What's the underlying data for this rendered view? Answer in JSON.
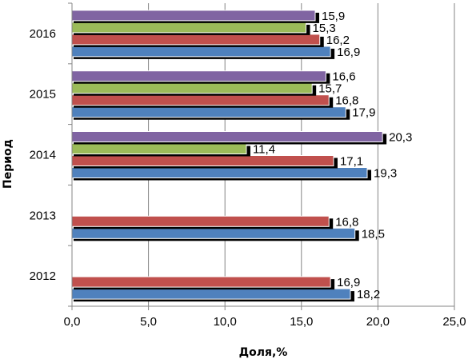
{
  "chart_data": {
    "type": "bar",
    "orientation": "horizontal",
    "xlabel": "Доля,%",
    "ylabel": "Период",
    "xlim": [
      0,
      25
    ],
    "xticks": [
      "0,0",
      "5,0",
      "10,0",
      "15,0",
      "20,0",
      "25,0"
    ],
    "xtick_values": [
      0,
      5,
      10,
      15,
      20,
      25
    ],
    "categories": [
      "2012",
      "2013",
      "2014",
      "2015",
      "2016"
    ],
    "grid": "vertical",
    "series": [
      {
        "color": "#4f81bd",
        "values": [
          18.2,
          18.5,
          19.3,
          17.9,
          16.9
        ],
        "labels": [
          "18,2",
          "18,5",
          "19,3",
          "17,9",
          "16,9"
        ]
      },
      {
        "color": "#c0504d",
        "values": [
          16.9,
          16.8,
          17.1,
          16.8,
          16.2
        ],
        "labels": [
          "16,9",
          "16,8",
          "17,1",
          "16,8",
          "16,2"
        ]
      },
      {
        "color": "#9bbb59",
        "values": [
          null,
          null,
          11.4,
          15.7,
          15.3
        ],
        "labels": [
          "",
          "",
          "11,4",
          "15,7",
          "15,3"
        ]
      },
      {
        "color": "#8064a2",
        "values": [
          null,
          null,
          20.3,
          16.6,
          15.9
        ],
        "labels": [
          "",
          "",
          "20,3",
          "16,6",
          "15,9"
        ]
      }
    ]
  }
}
